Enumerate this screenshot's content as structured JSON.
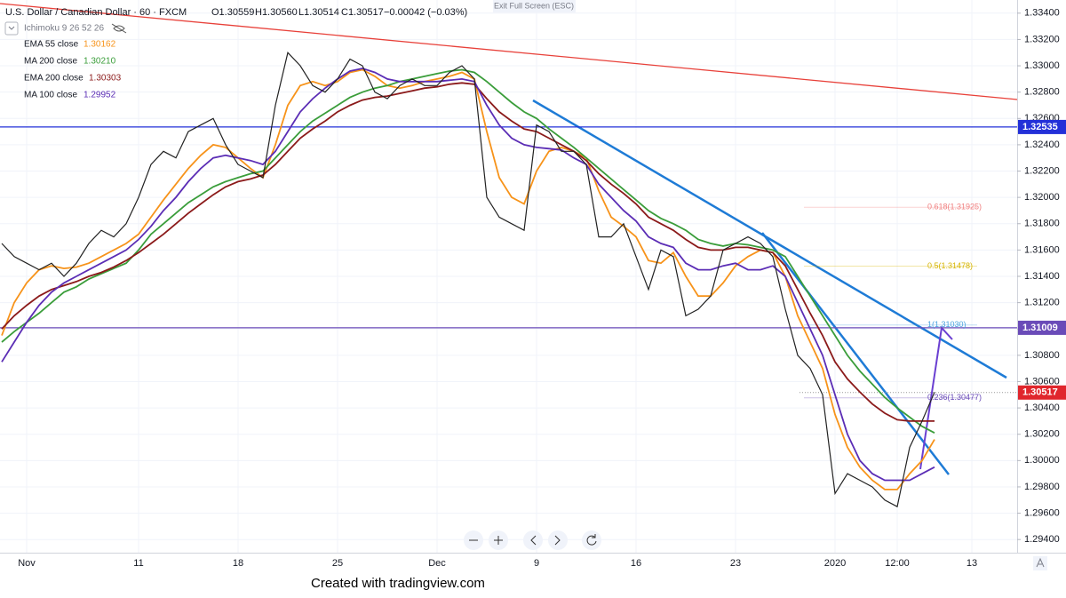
{
  "chart_data": {
    "type": "line",
    "header": {
      "symbol": "U.S. Dollar / Canadian Dollar · 60 · FXCM",
      "open": "O1.30559",
      "high": "H1.30560",
      "low": "L1.30514",
      "close": "C1.30517",
      "change": "−0.00042 (−0.03%)",
      "ichimoku": "Ichimoku 9 26 52 26",
      "exit_fullscreen": "Exit Full Screen (ESC)"
    },
    "categories": [
      null,
      null,
      "Nov",
      null,
      null,
      null,
      null,
      null,
      null,
      null,
      null,
      "11",
      null,
      null,
      null,
      null,
      null,
      null,
      null,
      "18",
      null,
      null,
      null,
      null,
      null,
      null,
      null,
      "25",
      null,
      null,
      null,
      null,
      null,
      null,
      null,
      "Dec",
      null,
      null,
      null,
      null,
      null,
      null,
      null,
      "9",
      null,
      null,
      null,
      null,
      null,
      null,
      null,
      "16",
      null,
      null,
      null,
      null,
      null,
      null,
      null,
      "23",
      null,
      null,
      null,
      null,
      null,
      null,
      null,
      "2020",
      null,
      null,
      null,
      null,
      "12:00",
      null,
      null,
      null,
      null,
      null,
      "13",
      null,
      null,
      null
    ],
    "price": {
      "color": "#222222",
      "values": [
        1.3165,
        1.3155,
        1.315,
        1.3145,
        1.315,
        1.314,
        1.315,
        1.3165,
        1.3175,
        1.317,
        1.318,
        1.32,
        1.3225,
        1.3235,
        1.323,
        1.325,
        1.3255,
        1.326,
        1.324,
        1.3225,
        1.322,
        1.3215,
        1.327,
        1.331,
        1.33,
        1.3285,
        1.328,
        1.329,
        1.3305,
        1.33,
        1.328,
        1.3275,
        1.3285,
        1.329,
        1.3285,
        1.3285,
        1.3295,
        1.33,
        1.329,
        1.32,
        1.3185,
        1.318,
        1.3175,
        1.3255,
        1.325,
        1.3235,
        1.3235,
        1.3225,
        1.317,
        1.317,
        1.318,
        1.3155,
        1.313,
        1.316,
        1.3155,
        1.311,
        1.3115,
        1.3125,
        1.316,
        1.3165,
        1.317,
        1.3165,
        1.3155,
        1.3115,
        1.308,
        1.307,
        1.305,
        1.2975,
        1.299,
        1.2985,
        1.298,
        1.297,
        1.2965,
        1.301,
        1.303,
        1.3052,
        null,
        null,
        null,
        null,
        null,
        null
      ]
    },
    "series": [
      {
        "name": "EMA 55 close",
        "legend_value": "1.30162",
        "color": "#f7931a",
        "values": [
          1.3095,
          1.312,
          1.3135,
          1.3145,
          1.3148,
          1.3146,
          1.3147,
          1.315,
          1.3155,
          1.316,
          1.3165,
          1.3172,
          1.3185,
          1.3198,
          1.321,
          1.3222,
          1.3232,
          1.324,
          1.3238,
          1.323,
          1.3222,
          1.3215,
          1.324,
          1.327,
          1.3285,
          1.3288,
          1.3285,
          1.3288,
          1.3295,
          1.3297,
          1.3292,
          1.3285,
          1.3283,
          1.3285,
          1.3288,
          1.329,
          1.3292,
          1.3295,
          1.329,
          1.325,
          1.3215,
          1.32,
          1.3195,
          1.322,
          1.3235,
          1.3238,
          1.3235,
          1.323,
          1.3205,
          1.3185,
          1.3178,
          1.317,
          1.3152,
          1.315,
          1.3158,
          1.314,
          1.3125,
          1.3125,
          1.3135,
          1.3148,
          1.3155,
          1.316,
          1.3158,
          1.314,
          1.311,
          1.309,
          1.307,
          1.3035,
          1.301,
          1.2995,
          1.2985,
          1.2978,
          1.2978,
          1.299,
          1.3,
          1.3016,
          null,
          null,
          null,
          null,
          null,
          null
        ]
      },
      {
        "name": "MA 200 close",
        "legend_value": "1.30210",
        "color": "#3a9d3a",
        "values": [
          1.309,
          1.3098,
          1.3105,
          1.3112,
          1.312,
          1.3128,
          1.3132,
          1.3138,
          1.3142,
          1.3146,
          1.315,
          1.316,
          1.3172,
          1.318,
          1.3188,
          1.3196,
          1.3202,
          1.3208,
          1.3212,
          1.3215,
          1.3218,
          1.322,
          1.323,
          1.324,
          1.325,
          1.3258,
          1.3264,
          1.327,
          1.3276,
          1.328,
          1.3283,
          1.3285,
          1.3288,
          1.329,
          1.3292,
          1.3294,
          1.3296,
          1.3297,
          1.3295,
          1.3288,
          1.328,
          1.3272,
          1.3265,
          1.326,
          1.3252,
          1.3245,
          1.3238,
          1.323,
          1.3222,
          1.3214,
          1.3206,
          1.3198,
          1.319,
          1.3184,
          1.318,
          1.3175,
          1.3168,
          1.3165,
          1.3163,
          1.3165,
          1.3164,
          1.3162,
          1.316,
          1.3155,
          1.314,
          1.3125,
          1.311,
          1.3095,
          1.308,
          1.3068,
          1.3058,
          1.3048,
          1.304,
          1.3033,
          1.3026,
          1.3021,
          null,
          null,
          null,
          null,
          null,
          null
        ]
      },
      {
        "name": "EMA 200 close",
        "legend_value": "1.30303",
        "color": "#8b1a1a",
        "values": [
          1.31,
          1.311,
          1.3118,
          1.3125,
          1.313,
          1.3133,
          1.3136,
          1.314,
          1.3143,
          1.3147,
          1.3152,
          1.3158,
          1.3165,
          1.3172,
          1.318,
          1.3188,
          1.3195,
          1.3202,
          1.3208,
          1.3212,
          1.3214,
          1.3217,
          1.3225,
          1.3235,
          1.3245,
          1.3252,
          1.3258,
          1.3265,
          1.327,
          1.3274,
          1.3276,
          1.3277,
          1.3279,
          1.3281,
          1.3283,
          1.3284,
          1.3286,
          1.3287,
          1.3286,
          1.3275,
          1.3265,
          1.3258,
          1.3252,
          1.325,
          1.3245,
          1.324,
          1.3235,
          1.3228,
          1.3218,
          1.321,
          1.3203,
          1.3195,
          1.3185,
          1.318,
          1.3175,
          1.3168,
          1.3162,
          1.316,
          1.316,
          1.3162,
          1.3162,
          1.316,
          1.3158,
          1.3148,
          1.313,
          1.3112,
          1.3095,
          1.3075,
          1.3062,
          1.3052,
          1.3043,
          1.3036,
          1.3031,
          1.303,
          1.303,
          1.303,
          null,
          null,
          null,
          null,
          null,
          null
        ]
      },
      {
        "name": "MA 100 close",
        "legend_value": "1.29952",
        "color": "#5b2db5",
        "values": [
          1.3075,
          1.309,
          1.3105,
          1.3118,
          1.3128,
          1.3135,
          1.314,
          1.3145,
          1.315,
          1.3155,
          1.316,
          1.3168,
          1.3178,
          1.319,
          1.32,
          1.3212,
          1.3222,
          1.323,
          1.3232,
          1.323,
          1.3228,
          1.3225,
          1.3235,
          1.325,
          1.3265,
          1.3275,
          1.3283,
          1.329,
          1.3296,
          1.3298,
          1.3295,
          1.329,
          1.3288,
          1.3288,
          1.3288,
          1.3288,
          1.3289,
          1.329,
          1.3288,
          1.327,
          1.3255,
          1.3245,
          1.324,
          1.3238,
          1.3237,
          1.3236,
          1.323,
          1.3225,
          1.321,
          1.32,
          1.319,
          1.3182,
          1.317,
          1.3165,
          1.3162,
          1.315,
          1.3145,
          1.3145,
          1.3148,
          1.315,
          1.3145,
          1.3145,
          1.3148,
          1.314,
          1.312,
          1.31,
          1.308,
          1.305,
          1.302,
          1.3,
          1.299,
          1.2985,
          1.2985,
          1.2985,
          1.299,
          1.2995,
          null,
          null,
          null,
          null,
          null,
          null
        ]
      }
    ],
    "ylim": [
      1.293,
      1.335
    ],
    "yticks": [
      {
        "value": 1.294,
        "label": "1.29400"
      },
      {
        "value": 1.296,
        "label": "1.29600"
      },
      {
        "value": 1.298,
        "label": "1.29800"
      },
      {
        "value": 1.3,
        "label": "1.30000"
      },
      {
        "value": 1.302,
        "label": "1.30200"
      },
      {
        "value": 1.304,
        "label": "1.30400"
      },
      {
        "value": 1.306,
        "label": "1.30600"
      },
      {
        "value": 1.308,
        "label": "1.30800"
      },
      {
        "value": 1.31,
        "label": "1.31000"
      },
      {
        "value": 1.312,
        "label": "1.31200"
      },
      {
        "value": 1.314,
        "label": "1.31400"
      },
      {
        "value": 1.316,
        "label": "1.31600"
      },
      {
        "value": 1.318,
        "label": "1.31800"
      },
      {
        "value": 1.32,
        "label": "1.32000"
      },
      {
        "value": 1.322,
        "label": "1.32200"
      },
      {
        "value": 1.324,
        "label": "1.32400"
      },
      {
        "value": 1.326,
        "label": "1.32600"
      },
      {
        "value": 1.328,
        "label": "1.32800"
      },
      {
        "value": 1.33,
        "label": "1.33000"
      },
      {
        "value": 1.332,
        "label": "1.33200"
      },
      {
        "value": 1.334,
        "label": "1.33400"
      }
    ],
    "grid": true,
    "horizontal_lines": [
      {
        "value": 1.32535,
        "color": "#2330d8"
      },
      {
        "value": 1.31009,
        "color": "#6a4bb8"
      },
      {
        "value": 1.30517,
        "color": "#e0262c"
      }
    ],
    "fib_labels": [
      {
        "value": 1.31925,
        "label": "0.618(1.31925)",
        "color": "#f08080"
      },
      {
        "value": 1.31478,
        "label": "0.5(1.31478)",
        "color": "#d6b400"
      },
      {
        "value": 1.3103,
        "label": "1(1.31030)",
        "color": "#4aa3df"
      },
      {
        "value": 1.30477,
        "label": "0.236(1.30477)",
        "color": "#6a4bb8"
      }
    ],
    "footer": "Created with tradingview.com"
  }
}
